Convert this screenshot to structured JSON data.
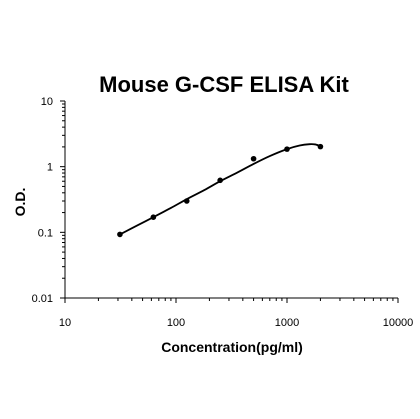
{
  "chart_data": {
    "type": "scatter",
    "title": "Mouse G-CSF ELISA Kit",
    "xlabel": "Concentration(pg/ml)",
    "ylabel": "O.D.",
    "x_scale": "log",
    "y_scale": "log",
    "xlim": [
      10,
      10000
    ],
    "ylim": [
      0.01,
      10
    ],
    "x_ticks": [
      "10",
      "100",
      "1000",
      "10000"
    ],
    "y_ticks": [
      "0.01",
      "0.1",
      "1",
      "10"
    ],
    "grid": false,
    "legend": "none",
    "series": [
      {
        "x": [
          31.25,
          62.5,
          125,
          250,
          500,
          1000,
          2000
        ],
        "y": [
          0.093,
          0.17,
          0.3,
          0.62,
          1.32,
          1.85,
          2.02
        ]
      }
    ],
    "fit_curve": {
      "x": [
        31.25,
        45,
        62.5,
        90,
        125,
        180,
        250,
        360,
        500,
        700,
        1000,
        1300,
        1600,
        1800,
        2000
      ],
      "y": [
        0.093,
        0.128,
        0.17,
        0.235,
        0.32,
        0.44,
        0.6,
        0.82,
        1.1,
        1.45,
        1.85,
        2.1,
        2.2,
        2.18,
        2.05
      ]
    },
    "colors": {
      "marker": "#000000",
      "line": "#000000",
      "axis": "#000000"
    }
  }
}
